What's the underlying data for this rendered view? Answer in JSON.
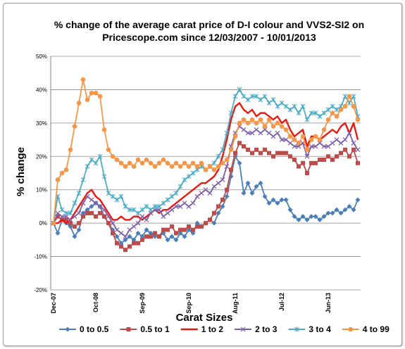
{
  "chart_data": {
    "type": "line",
    "title": "% change of the average carat price of  D-I colour and VVS2-SI2  on Pricescope.com since 12/03/2007 - 10/01/2013",
    "title_lines": [
      "% change of the average carat price of  D-I colour and VVS2-SI2  on",
      "Pricescope.com since 12/03/2007 - 10/01/2013"
    ],
    "xlabel": "Carat Sizes",
    "ylabel": "% change",
    "ylim": [
      -20,
      50
    ],
    "yticks": [
      -20,
      -10,
      0,
      10,
      20,
      30,
      40,
      50
    ],
    "ytick_labels": [
      "-20%",
      "-10%",
      "0%",
      "10%",
      "20%",
      "30%",
      "40%",
      "50%"
    ],
    "x_tick_labels": [
      "Dec-07",
      "Oct-08",
      "Sep-09",
      "Sep-10",
      "Aug-11",
      "Jul-12",
      "Jun-13"
    ],
    "x_tick_index": [
      0,
      10,
      21,
      32,
      43,
      54,
      65
    ],
    "grid": "horizontal",
    "legend_position": "bottom",
    "series": [
      {
        "name": "0 to 0.5",
        "color": "#4a7ebb",
        "marker": "diamond",
        "values": [
          0,
          -3,
          1,
          0,
          -1,
          -4,
          -2,
          3,
          4,
          5,
          6,
          5,
          2,
          0,
          -2,
          -4,
          -6,
          -5,
          -4,
          -5,
          -3,
          -4,
          -2,
          -3,
          -4,
          -4,
          -3,
          -5,
          -4,
          -5,
          -3,
          -4,
          -2,
          -3,
          0,
          -1,
          0,
          1,
          0,
          3,
          5,
          8,
          14,
          20,
          18,
          9,
          12,
          9,
          11,
          12,
          8,
          6,
          7,
          6,
          7,
          7,
          4,
          2,
          1,
          2,
          1,
          2,
          2,
          1,
          2,
          3,
          3,
          4,
          3,
          4,
          5,
          4,
          7
        ]
      },
      {
        "name": "0.5  to 1",
        "color": "#be4b48",
        "marker": "square",
        "values": [
          0,
          2,
          1,
          1,
          0,
          -1,
          0,
          2,
          3,
          3,
          2,
          3,
          2,
          0,
          -3,
          -6,
          -7,
          -8,
          -7,
          -6,
          -6,
          -5,
          -4,
          -4,
          -3,
          -4,
          -2,
          -2,
          -1,
          -3,
          -2,
          -2,
          -1,
          -2,
          -1,
          -1,
          0,
          1,
          3,
          5,
          7,
          10,
          16,
          21,
          24,
          23,
          22,
          21,
          22,
          21,
          22,
          21,
          20,
          21,
          21,
          21,
          20,
          19,
          17,
          18,
          15,
          18,
          18,
          19,
          19,
          20,
          19,
          20,
          21,
          22,
          20,
          22,
          18
        ]
      },
      {
        "name": "1 to 2",
        "color": "#e8190f",
        "marker": "none",
        "values": [
          0,
          0,
          1,
          0,
          1,
          3,
          5,
          7,
          9,
          10,
          8,
          7,
          5,
          3,
          1,
          1,
          2,
          1,
          1,
          2,
          2,
          1,
          2,
          3,
          4,
          3,
          4,
          4,
          5,
          6,
          7,
          8,
          9,
          10,
          11,
          12,
          12,
          13,
          14,
          16,
          20,
          25,
          31,
          35,
          36,
          34,
          33,
          34,
          32,
          33,
          33,
          32,
          31,
          32,
          30,
          31,
          28,
          26,
          27,
          28,
          23,
          26,
          26,
          25,
          26,
          27,
          28,
          27,
          29,
          30,
          27,
          30,
          25
        ]
      },
      {
        "name": "2 to 3",
        "color": "#7e5ea8",
        "marker": "x",
        "values": [
          0,
          3,
          2,
          2,
          1,
          2,
          3,
          6,
          8,
          7,
          6,
          5,
          4,
          2,
          0,
          -2,
          -3,
          -4,
          -2,
          -1,
          0,
          2,
          1,
          3,
          4,
          4,
          2,
          3,
          4,
          5,
          5,
          6,
          5,
          6,
          8,
          9,
          10,
          9,
          11,
          12,
          13,
          17,
          23,
          27,
          29,
          28,
          27,
          27,
          28,
          27,
          28,
          27,
          26,
          27,
          25,
          25,
          24,
          23,
          23,
          24,
          20,
          23,
          23,
          24,
          23,
          23,
          24,
          25,
          24,
          25,
          27,
          24,
          22
        ]
      },
      {
        "name": "3 to 4",
        "color": "#4bacc6",
        "marker": "star",
        "values": [
          0,
          8,
          4,
          3,
          3,
          6,
          9,
          13,
          17,
          19,
          18,
          20,
          14,
          9,
          8,
          7,
          8,
          5,
          4,
          4,
          3,
          4,
          5,
          4,
          5,
          5,
          6,
          7,
          8,
          9,
          11,
          13,
          14,
          15,
          16,
          17,
          16,
          17,
          18,
          20,
          22,
          27,
          33,
          38,
          40,
          38,
          37,
          38,
          38,
          37,
          38,
          36,
          37,
          35,
          36,
          35,
          34,
          35,
          33,
          35,
          31,
          33,
          33,
          32,
          33,
          34,
          35,
          34,
          35,
          38,
          36,
          38,
          32
        ]
      },
      {
        "name": "4 to 99",
        "color": "#f79646",
        "marker": "circle",
        "values": [
          0,
          13,
          15,
          16,
          22,
          29,
          36,
          43,
          37,
          39,
          39,
          38,
          28,
          22,
          20,
          19,
          18,
          17,
          18,
          17,
          19,
          18,
          19,
          18,
          17,
          18,
          19,
          18,
          17,
          18,
          17,
          18,
          17,
          18,
          17,
          18,
          16,
          17,
          16,
          17,
          18,
          19,
          22,
          26,
          30,
          31,
          30,
          31,
          30,
          31,
          29,
          31,
          29,
          30,
          29,
          28,
          26,
          25,
          24,
          26,
          22,
          25,
          26,
          25,
          28,
          31,
          33,
          32,
          34,
          35,
          38,
          35,
          31
        ]
      }
    ]
  }
}
